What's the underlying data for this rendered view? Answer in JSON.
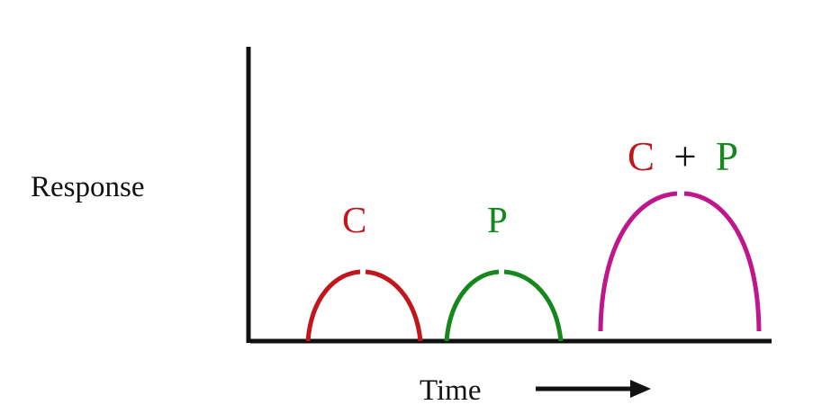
{
  "axes": {
    "y_label": "Response",
    "x_label": "Time"
  },
  "curves": [
    {
      "label": "C",
      "color": "#c0161c"
    },
    {
      "label": "P",
      "color": "#15871c"
    },
    {
      "label_parts": [
        "C",
        "+",
        "P"
      ],
      "colors": [
        "#c0161c",
        "#111111",
        "#15871c"
      ],
      "color": "#c0168c"
    }
  ],
  "colors": {
    "axis": "#111111",
    "text": "#111111"
  }
}
